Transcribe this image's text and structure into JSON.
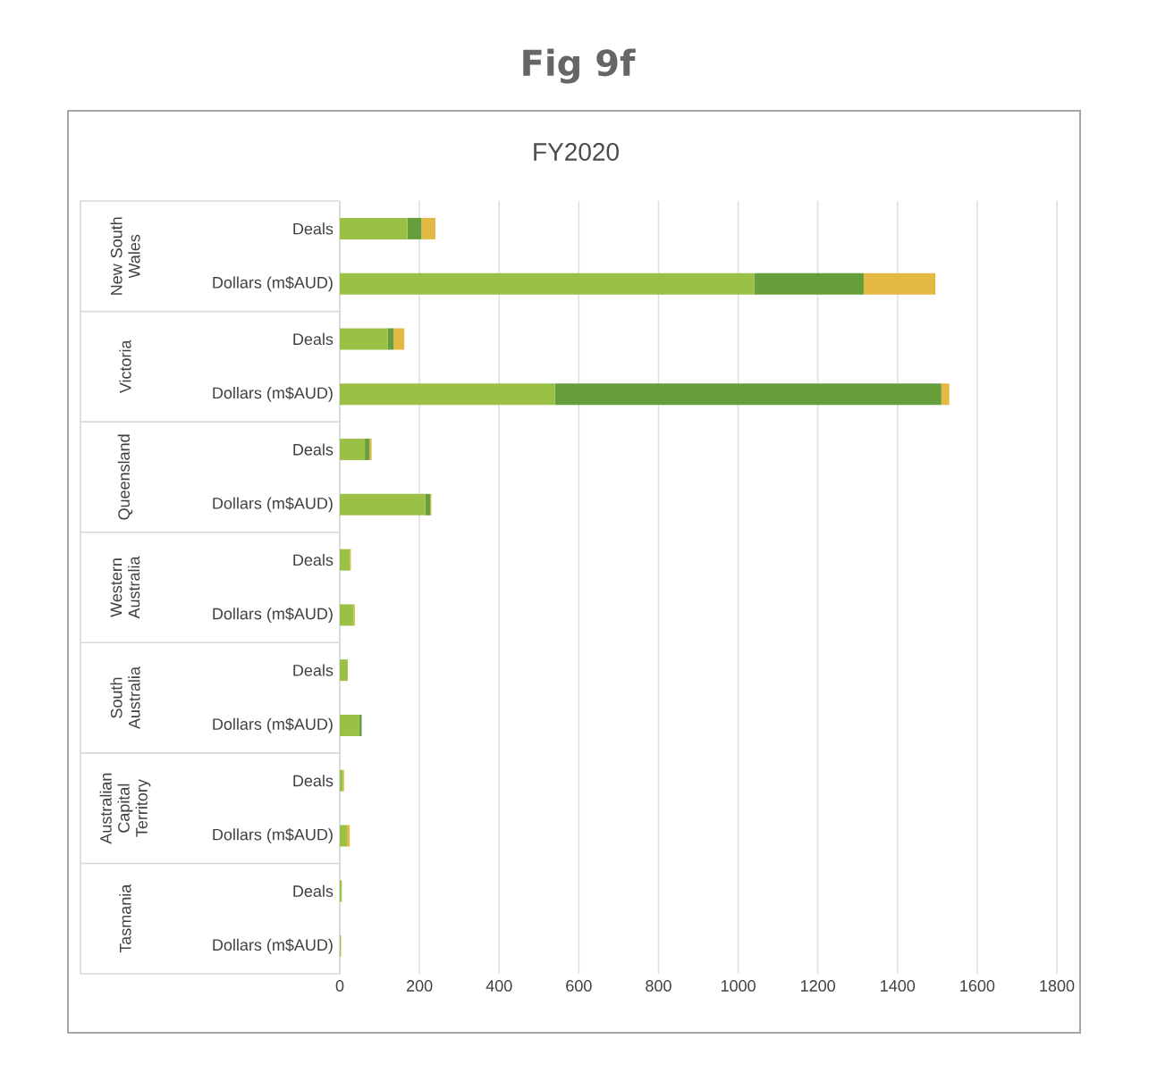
{
  "chart_data": {
    "type": "bar",
    "orientation": "horizontal",
    "stacked": true,
    "title": "Fig 9f",
    "subtitle": "FY2020",
    "categories": [
      "Deals",
      "Dollars (m$AUD)",
      "Deals",
      "Dollars (m$AUD)",
      "Deals",
      "Dollars (m$AUD)",
      "Deals",
      "Dollars (m$AUD)",
      "Deals",
      "Dollars (m$AUD)",
      "Deals",
      "Dollars (m$AUD)",
      "Deals",
      "Dollars (m$AUD)"
    ],
    "annotations": [
      "New South Wales",
      "Victoria",
      "Queensland",
      "Western Australia",
      "South Australia",
      "Australian Capital Territory",
      "Tasmania"
    ],
    "series": [
      {
        "color": "#9bc046",
        "values": [
          170,
          1040,
          120,
          540,
          63,
          215,
          25,
          35,
          20,
          48,
          8,
          18,
          5,
          3
        ]
      },
      {
        "color": "#659e3a",
        "values": [
          35,
          275,
          15,
          970,
          12,
          12,
          0,
          0,
          0,
          7,
          0,
          0,
          0,
          0
        ]
      },
      {
        "color": "#e3b843",
        "values": [
          35,
          180,
          27,
          20,
          5,
          3,
          3,
          3,
          0,
          0,
          3,
          7,
          0,
          0
        ]
      }
    ],
    "xlim": [
      0,
      1800
    ],
    "xticks": [
      0,
      200,
      400,
      600,
      800,
      1000,
      1200,
      1400,
      1600,
      1800
    ],
    "grid": "x"
  }
}
